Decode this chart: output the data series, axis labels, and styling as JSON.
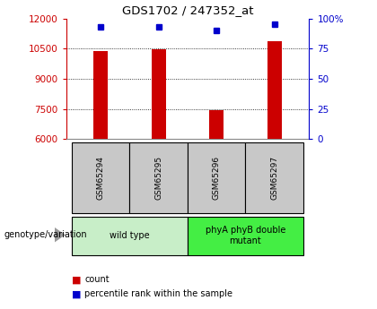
{
  "title": "GDS1702 / 247352_at",
  "samples": [
    "GSM65294",
    "GSM65295",
    "GSM65296",
    "GSM65297"
  ],
  "bar_values": [
    10380,
    10490,
    7450,
    10870
  ],
  "percentile_values": [
    93,
    93,
    90,
    95
  ],
  "ylim_left": [
    6000,
    12000
  ],
  "ylim_right": [
    0,
    100
  ],
  "yticks_left": [
    6000,
    7500,
    9000,
    10500,
    12000
  ],
  "yticks_right": [
    0,
    25,
    50,
    75,
    100
  ],
  "bar_color": "#cc0000",
  "dot_color": "#0000cc",
  "bar_bottom": 6000,
  "groups": [
    {
      "label": "wild type",
      "color": "#c8eec8",
      "start": 0,
      "end": 1
    },
    {
      "label": "phyA phyB double\nmutant",
      "color": "#44ee44",
      "start": 2,
      "end": 3
    }
  ],
  "sample_bg": "#c8c8c8",
  "genotype_label": "genotype/variation",
  "legend_count_color": "#cc0000",
  "legend_pct_color": "#0000cc"
}
